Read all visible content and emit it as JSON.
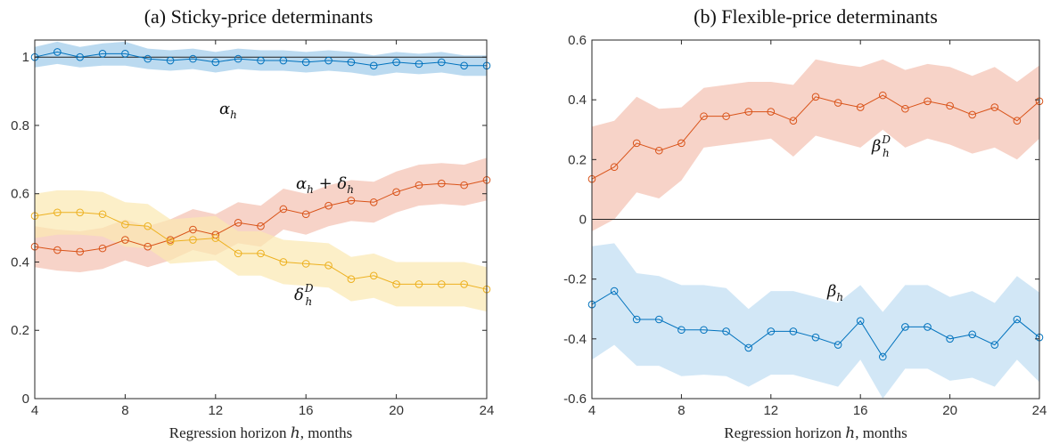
{
  "chart_data": [
    {
      "type": "line",
      "title": "(a) Sticky-price determinants",
      "xlabel_parts": [
        "Regression horizon ",
        "h",
        ", months"
      ],
      "xlabel": "Regression horizon h, months",
      "ylabel": "",
      "xlim": [
        4,
        24
      ],
      "ylim": [
        0,
        1.05
      ],
      "xticks": [
        4,
        8,
        12,
        16,
        20,
        24
      ],
      "xtick_labels": [
        "4",
        "8",
        "12",
        "16",
        "20",
        "24"
      ],
      "yticks": [
        0,
        0.2,
        0.4,
        0.6,
        0.8,
        1
      ],
      "ytick_labels": [
        "0",
        "0.2",
        "0.4",
        "0.6",
        "0.8",
        "1"
      ],
      "reference_line": 1,
      "x": [
        4,
        5,
        6,
        7,
        8,
        9,
        10,
        11,
        12,
        13,
        14,
        15,
        16,
        17,
        18,
        19,
        20,
        21,
        22,
        23,
        24
      ],
      "series": [
        {
          "label_base": "α",
          "label_sub": "h",
          "color": "#0072BD",
          "band_color": "#9ECAE9",
          "values": [
            1.0,
            1.015,
            1.0,
            1.01,
            1.01,
            0.995,
            0.99,
            0.995,
            0.985,
            0.995,
            0.99,
            0.99,
            0.985,
            0.99,
            0.985,
            0.975,
            0.985,
            0.98,
            0.985,
            0.975,
            0.975
          ],
          "lower": [
            0.97,
            0.98,
            0.97,
            0.975,
            0.975,
            0.965,
            0.96,
            0.965,
            0.955,
            0.965,
            0.96,
            0.96,
            0.955,
            0.96,
            0.955,
            0.945,
            0.955,
            0.95,
            0.955,
            0.945,
            0.945
          ],
          "upper": [
            1.03,
            1.045,
            1.03,
            1.04,
            1.045,
            1.025,
            1.02,
            1.025,
            1.015,
            1.025,
            1.02,
            1.02,
            1.015,
            1.02,
            1.015,
            1.005,
            1.015,
            1.01,
            1.015,
            1.005,
            1.005
          ]
        },
        {
          "label_base": "α",
          "label_sub": "h",
          "label_plus": " + ",
          "label_base2": "δ",
          "label_sub2": "h",
          "color": "#D95319",
          "band_color": "#F4C1B1",
          "values": [
            0.445,
            0.435,
            0.43,
            0.44,
            0.465,
            0.445,
            0.465,
            0.495,
            0.48,
            0.515,
            0.505,
            0.555,
            0.54,
            0.565,
            0.58,
            0.575,
            0.605,
            0.625,
            0.63,
            0.625,
            0.64
          ],
          "lower": [
            0.385,
            0.375,
            0.37,
            0.38,
            0.405,
            0.385,
            0.405,
            0.435,
            0.42,
            0.455,
            0.445,
            0.495,
            0.48,
            0.505,
            0.52,
            0.515,
            0.545,
            0.565,
            0.57,
            0.565,
            0.58
          ],
          "upper": [
            0.505,
            0.495,
            0.49,
            0.5,
            0.525,
            0.505,
            0.525,
            0.555,
            0.54,
            0.575,
            0.565,
            0.615,
            0.6,
            0.625,
            0.64,
            0.635,
            0.665,
            0.685,
            0.69,
            0.685,
            0.705
          ]
        },
        {
          "label_base": "δ",
          "label_sub": "h",
          "label_sup": "D",
          "color": "#EDB120",
          "band_color": "#FBE8B0",
          "values": [
            0.535,
            0.545,
            0.545,
            0.54,
            0.51,
            0.505,
            0.46,
            0.465,
            0.47,
            0.425,
            0.425,
            0.4,
            0.395,
            0.39,
            0.35,
            0.36,
            0.335,
            0.335,
            0.335,
            0.335,
            0.32
          ],
          "lower": [
            0.47,
            0.48,
            0.48,
            0.475,
            0.445,
            0.44,
            0.395,
            0.4,
            0.405,
            0.36,
            0.36,
            0.335,
            0.33,
            0.325,
            0.285,
            0.295,
            0.27,
            0.27,
            0.27,
            0.27,
            0.255
          ],
          "upper": [
            0.6,
            0.61,
            0.61,
            0.605,
            0.575,
            0.57,
            0.525,
            0.53,
            0.535,
            0.49,
            0.49,
            0.465,
            0.46,
            0.455,
            0.415,
            0.425,
            0.4,
            0.4,
            0.4,
            0.4,
            0.385
          ]
        }
      ]
    },
    {
      "type": "line",
      "title": "(b) Flexible-price determinants",
      "xlabel_parts": [
        "Regression horizon ",
        "h",
        ", months"
      ],
      "xlabel": "Regression horizon h, months",
      "ylabel": "",
      "xlim": [
        4,
        24
      ],
      "ylim": [
        -0.6,
        0.6
      ],
      "xticks": [
        4,
        8,
        12,
        16,
        20,
        24
      ],
      "xtick_labels": [
        "4",
        "8",
        "12",
        "16",
        "20",
        "24"
      ],
      "yticks": [
        -0.6,
        -0.4,
        -0.2,
        0,
        0.2,
        0.4,
        0.6
      ],
      "ytick_labels": [
        "-0.6",
        "-0.4",
        "-0.2",
        "0",
        "0.2",
        "0.4",
        "0.6"
      ],
      "reference_line": 0,
      "x": [
        4,
        5,
        6,
        7,
        8,
        9,
        10,
        11,
        12,
        13,
        14,
        15,
        16,
        17,
        18,
        19,
        20,
        21,
        22,
        23,
        24
      ],
      "series": [
        {
          "label_base": "β",
          "label_sub": "h",
          "label_sup": "D",
          "color": "#D95319",
          "band_color": "#F4C1B1",
          "values": [
            0.135,
            0.175,
            0.255,
            0.23,
            0.255,
            0.345,
            0.345,
            0.36,
            0.36,
            0.33,
            0.41,
            0.39,
            0.375,
            0.415,
            0.37,
            0.395,
            0.38,
            0.35,
            0.375,
            0.33,
            0.395
          ],
          "lower": [
            -0.04,
            0.0,
            0.09,
            0.07,
            0.13,
            0.24,
            0.25,
            0.26,
            0.27,
            0.21,
            0.28,
            0.26,
            0.24,
            0.3,
            0.24,
            0.27,
            0.25,
            0.22,
            0.24,
            0.2,
            0.27
          ],
          "upper": [
            0.31,
            0.33,
            0.41,
            0.37,
            0.375,
            0.44,
            0.45,
            0.46,
            0.46,
            0.45,
            0.535,
            0.52,
            0.51,
            0.535,
            0.5,
            0.52,
            0.51,
            0.48,
            0.51,
            0.46,
            0.515
          ]
        },
        {
          "label_base": "β",
          "label_sub": "h",
          "color": "#0072BD",
          "band_color": "#BFDDF2",
          "values": [
            -0.285,
            -0.24,
            -0.335,
            -0.335,
            -0.37,
            -0.37,
            -0.375,
            -0.43,
            -0.375,
            -0.375,
            -0.395,
            -0.42,
            -0.34,
            -0.46,
            -0.36,
            -0.36,
            -0.4,
            -0.385,
            -0.42,
            -0.335,
            -0.395
          ],
          "lower": [
            -0.47,
            -0.42,
            -0.49,
            -0.49,
            -0.525,
            -0.52,
            -0.525,
            -0.56,
            -0.52,
            -0.52,
            -0.54,
            -0.56,
            -0.47,
            -0.6,
            -0.5,
            -0.5,
            -0.54,
            -0.53,
            -0.56,
            -0.47,
            -0.545
          ],
          "upper": [
            -0.09,
            -0.08,
            -0.18,
            -0.19,
            -0.22,
            -0.22,
            -0.23,
            -0.3,
            -0.24,
            -0.24,
            -0.26,
            -0.28,
            -0.22,
            -0.31,
            -0.22,
            -0.22,
            -0.26,
            -0.24,
            -0.28,
            -0.19,
            -0.245
          ]
        }
      ]
    }
  ]
}
